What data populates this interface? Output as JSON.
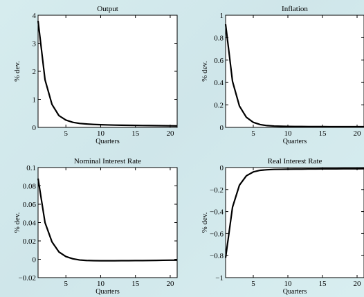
{
  "chart_data": [
    {
      "type": "line",
      "title": "Output",
      "xlabel": "Quarters",
      "ylabel": "% dev.",
      "xlim": [
        1,
        21
      ],
      "ylim": [
        0,
        4
      ],
      "xticks": [
        5,
        10,
        15,
        20
      ],
      "yticks": [
        0,
        1,
        2,
        3,
        4
      ],
      "yticklabels": [
        "0",
        "1",
        "2",
        "3",
        "4"
      ],
      "grid": false,
      "series": [
        {
          "x": [
            1,
            2,
            3,
            4,
            5,
            6,
            7,
            8,
            9,
            10,
            11,
            12,
            13,
            14,
            15,
            16,
            17,
            18,
            19,
            20,
            21
          ],
          "y": [
            3.8,
            1.7,
            0.82,
            0.42,
            0.26,
            0.18,
            0.14,
            0.12,
            0.105,
            0.095,
            0.088,
            0.082,
            0.078,
            0.074,
            0.07,
            0.067,
            0.064,
            0.061,
            0.058,
            0.055,
            0.052
          ]
        }
      ]
    },
    {
      "type": "line",
      "title": "Inflation",
      "xlabel": "Quarters",
      "ylabel": "% dev.",
      "xlim": [
        1,
        21
      ],
      "ylim": [
        0,
        1
      ],
      "xticks": [
        5,
        10,
        15,
        20
      ],
      "yticks": [
        0,
        0.2,
        0.4,
        0.6,
        0.8,
        1
      ],
      "yticklabels": [
        "0",
        "0.2",
        "0.4",
        "0.6",
        "0.8",
        "1"
      ],
      "grid": false,
      "series": [
        {
          "x": [
            1,
            2,
            3,
            4,
            5,
            6,
            7,
            8,
            9,
            10,
            11,
            12,
            13,
            14,
            15,
            16,
            17,
            18,
            19,
            20,
            21
          ],
          "y": [
            0.92,
            0.41,
            0.19,
            0.09,
            0.045,
            0.025,
            0.016,
            0.012,
            0.01,
            0.009,
            0.008,
            0.008,
            0.007,
            0.007,
            0.007,
            0.006,
            0.006,
            0.006,
            0.006,
            0.006,
            0.006
          ]
        }
      ]
    },
    {
      "type": "line",
      "title": "Nominal Interest Rate",
      "xlabel": "Quarters",
      "ylabel": "% dev.",
      "xlim": [
        1,
        21
      ],
      "ylim": [
        -0.02,
        0.1
      ],
      "xticks": [
        5,
        10,
        15,
        20
      ],
      "yticks": [
        -0.02,
        0,
        0.02,
        0.04,
        0.06,
        0.08,
        0.1
      ],
      "yticklabels": [
        "−0.02",
        "0",
        "0.02",
        "0.04",
        "0.06",
        "0.08",
        "0.1"
      ],
      "grid": false,
      "series": [
        {
          "x": [
            1,
            2,
            3,
            4,
            5,
            6,
            7,
            8,
            9,
            10,
            11,
            12,
            13,
            14,
            15,
            16,
            17,
            18,
            19,
            20,
            21
          ],
          "y": [
            0.088,
            0.04,
            0.019,
            0.008,
            0.003,
            0.0005,
            -0.0008,
            -0.0013,
            -0.0015,
            -0.0016,
            -0.0016,
            -0.0016,
            -0.0015,
            -0.0015,
            -0.0014,
            -0.0014,
            -0.0013,
            -0.0012,
            -0.0011,
            -0.001,
            -0.001
          ]
        }
      ]
    },
    {
      "type": "line",
      "title": "Real Interest Rate",
      "xlabel": "Quarters",
      "ylabel": "% dev.",
      "xlim": [
        1,
        21
      ],
      "ylim": [
        -1,
        0
      ],
      "xticks": [
        5,
        10,
        15,
        20
      ],
      "yticks": [
        -1,
        -0.8,
        -0.6,
        -0.4,
        -0.2,
        0
      ],
      "yticklabels": [
        "−1",
        "−0.8",
        "−0.6",
        "−0.4",
        "−0.2",
        "0"
      ],
      "grid": false,
      "series": [
        {
          "x": [
            1,
            2,
            3,
            4,
            5,
            6,
            7,
            8,
            9,
            10,
            11,
            12,
            13,
            14,
            15,
            16,
            17,
            18,
            19,
            20,
            21
          ],
          "y": [
            -0.82,
            -0.36,
            -0.16,
            -0.075,
            -0.04,
            -0.025,
            -0.02,
            -0.017,
            -0.016,
            -0.015,
            -0.014,
            -0.014,
            -0.013,
            -0.013,
            -0.012,
            -0.012,
            -0.012,
            -0.011,
            -0.011,
            -0.011,
            -0.01
          ]
        }
      ]
    }
  ]
}
